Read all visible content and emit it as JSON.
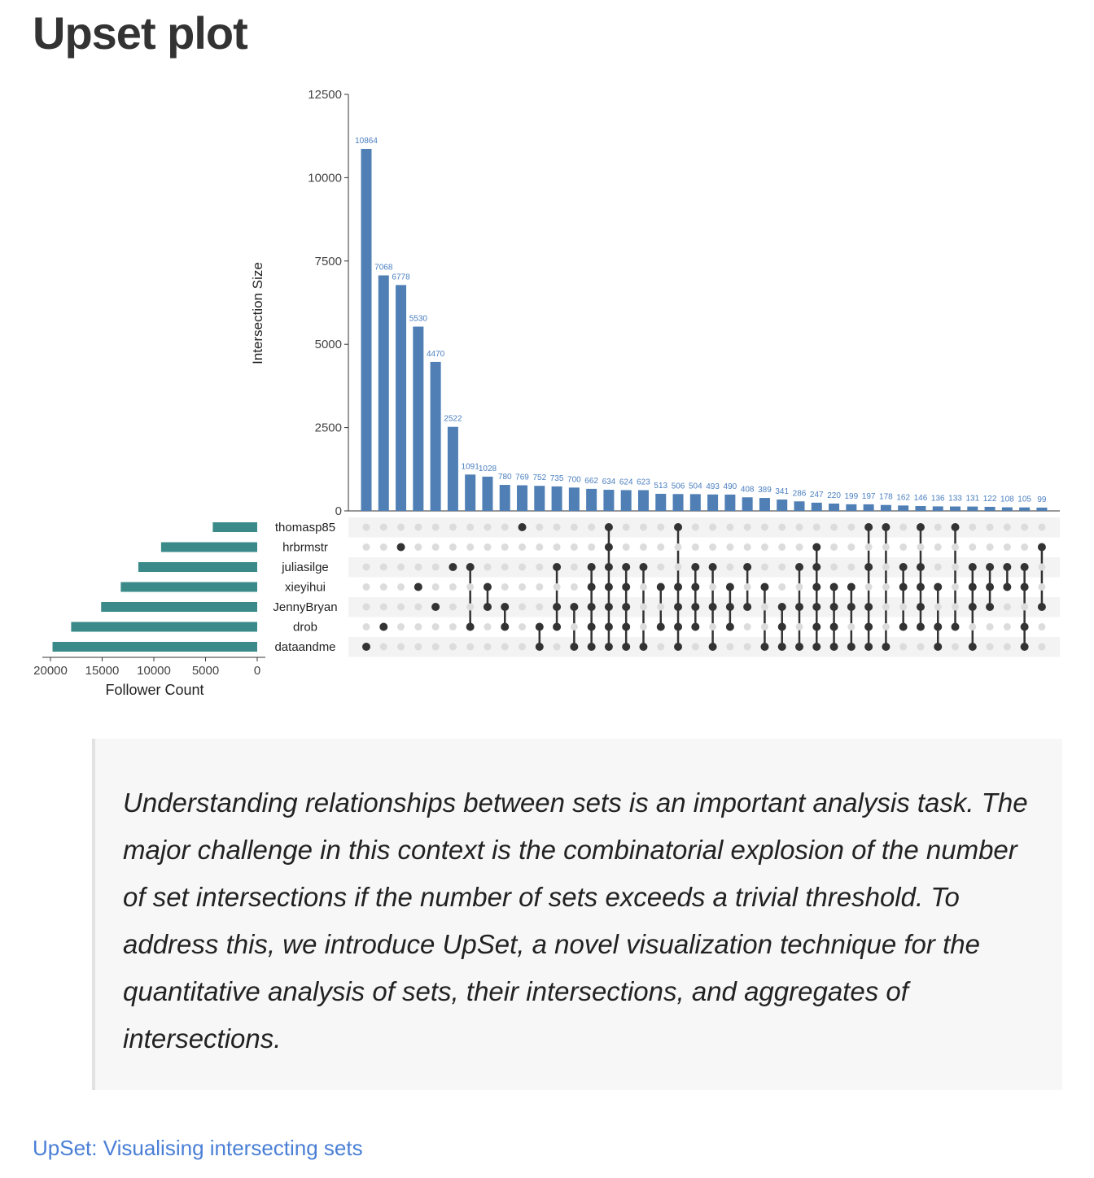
{
  "heading": "Upset plot",
  "chart_data": {
    "type": "upset",
    "y_label": "Intersection Size",
    "x_label": "Follower Count",
    "values": [
      10864,
      7068,
      6778,
      5530,
      4470,
      2522,
      1091,
      1028,
      780,
      769,
      752,
      735,
      700,
      662,
      634,
      624,
      623,
      513,
      506,
      504,
      493,
      490,
      408,
      389,
      341,
      286,
      247,
      220,
      199,
      197,
      178,
      162,
      146,
      136,
      133,
      131,
      122,
      108,
      105,
      99
    ],
    "color": "#4f7fb5",
    "label_color": "#4a7fc0",
    "ylim": [
      0,
      12500
    ],
    "yticks": [
      0,
      2500,
      5000,
      7500,
      10000,
      12500
    ],
    "sets": [
      "thomasp85",
      "hrbrmstr",
      "juliasilge",
      "xieyihui",
      "JennyBryan",
      "drob",
      "dataandme"
    ],
    "set_sizes": [
      4300,
      9300,
      11500,
      13200,
      15100,
      18000,
      19800
    ],
    "set_color": "#3a8a8a",
    "set_xlim": [
      0,
      20000
    ],
    "set_xticks": [
      20000,
      15000,
      10000,
      5000,
      0
    ],
    "set_axis_reversed": true,
    "members": [
      [
        0,
        0,
        0,
        0,
        0,
        0,
        1
      ],
      [
        0,
        0,
        0,
        0,
        0,
        1,
        0
      ],
      [
        0,
        1,
        0,
        0,
        0,
        0,
        0
      ],
      [
        0,
        0,
        0,
        1,
        0,
        0,
        0
      ],
      [
        0,
        0,
        0,
        0,
        1,
        0,
        0
      ],
      [
        0,
        0,
        1,
        0,
        0,
        0,
        0
      ],
      [
        0,
        0,
        1,
        0,
        0,
        1,
        0
      ],
      [
        0,
        0,
        0,
        1,
        1,
        0,
        0
      ],
      [
        0,
        0,
        0,
        0,
        1,
        1,
        0
      ],
      [
        1,
        0,
        0,
        0,
        0,
        0,
        0
      ],
      [
        0,
        0,
        0,
        0,
        0,
        1,
        1
      ],
      [
        0,
        0,
        1,
        0,
        1,
        1,
        0
      ],
      [
        0,
        0,
        0,
        0,
        1,
        0,
        1
      ],
      [
        0,
        0,
        1,
        1,
        1,
        1,
        1
      ],
      [
        1,
        1,
        1,
        1,
        1,
        1,
        1
      ],
      [
        0,
        0,
        1,
        1,
        1,
        1,
        1
      ],
      [
        0,
        0,
        1,
        0,
        0,
        0,
        1
      ],
      [
        0,
        0,
        0,
        1,
        0,
        1,
        0
      ],
      [
        1,
        0,
        0,
        1,
        1,
        1,
        1
      ],
      [
        0,
        0,
        1,
        1,
        1,
        1,
        0
      ],
      [
        0,
        0,
        1,
        0,
        1,
        0,
        1
      ],
      [
        0,
        0,
        0,
        1,
        1,
        1,
        0
      ],
      [
        0,
        0,
        1,
        0,
        1,
        0,
        0
      ],
      [
        0,
        0,
        0,
        1,
        0,
        0,
        1
      ],
      [
        0,
        0,
        0,
        0,
        1,
        1,
        1
      ],
      [
        0,
        0,
        1,
        0,
        1,
        0,
        1
      ],
      [
        0,
        1,
        1,
        1,
        1,
        1,
        1
      ],
      [
        0,
        0,
        0,
        1,
        1,
        1,
        1
      ],
      [
        0,
        0,
        0,
        1,
        1,
        0,
        1
      ],
      [
        1,
        0,
        1,
        0,
        1,
        1,
        1
      ],
      [
        1,
        0,
        0,
        0,
        0,
        0,
        1
      ],
      [
        0,
        0,
        1,
        1,
        0,
        1,
        0
      ],
      [
        1,
        0,
        1,
        1,
        1,
        1,
        0
      ],
      [
        0,
        0,
        0,
        1,
        0,
        1,
        1
      ],
      [
        1,
        0,
        0,
        0,
        0,
        1,
        0
      ],
      [
        0,
        0,
        1,
        1,
        1,
        0,
        1
      ],
      [
        0,
        0,
        1,
        1,
        1,
        0,
        0
      ],
      [
        0,
        0,
        1,
        1,
        0,
        0,
        0
      ],
      [
        0,
        0,
        1,
        1,
        0,
        1,
        1
      ],
      [
        0,
        1,
        0,
        0,
        1,
        0,
        0
      ]
    ]
  },
  "quote": "Understanding relationships between sets is an important analysis task. The major challenge in this context is the combinatorial explosion of the number of set intersections if the number of sets exceeds a trivial threshold. To address this, we introduce UpSet, a novel visualization technique for the quantitative analysis of sets, their intersections, and aggregates of intersections.",
  "link": "UpSet: Visualising intersecting sets"
}
